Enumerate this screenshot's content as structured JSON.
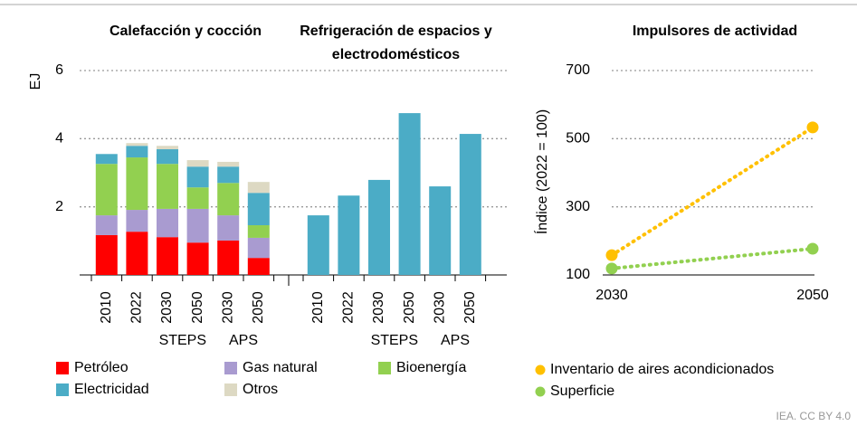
{
  "chart_data": [
    {
      "type": "bar",
      "stacked": true,
      "ylabel": "EJ",
      "ylim": [
        0,
        6
      ],
      "yticks": [
        2,
        4,
        6
      ],
      "grid": true,
      "categories": [
        "2010",
        "2022",
        "2030",
        "2050",
        "2030",
        "2050"
      ],
      "scenarios": [
        {
          "label": "STEPS",
          "from": 2,
          "to": 3
        },
        {
          "label": "APS",
          "from": 4,
          "to": 5
        }
      ],
      "series": [
        {
          "name": "Petróleo",
          "color": "#ff0000"
        },
        {
          "name": "Gas natural",
          "color": "#a99bd0"
        },
        {
          "name": "Bioenergía",
          "color": "#92d050"
        },
        {
          "name": "Electricidad",
          "color": "#4bacc6"
        },
        {
          "name": "Otros",
          "color": "#ddd9c3"
        }
      ],
      "panels": [
        {
          "title": "Calefacción y cocción",
          "values": [
            [
              1.17,
              1.27,
              1.11,
              0.95,
              1.01,
              0.5
            ],
            [
              0.58,
              0.64,
              0.83,
              0.99,
              0.74,
              0.59
            ],
            [
              1.51,
              1.54,
              1.32,
              0.63,
              0.95,
              0.37
            ],
            [
              0.29,
              0.34,
              0.43,
              0.61,
              0.48,
              0.95
            ],
            [
              0,
              0.08,
              0.1,
              0.19,
              0.14,
              0.32
            ]
          ]
        },
        {
          "title": "Refrigeración de espacios y electrodomésticos",
          "values": [
            null,
            null,
            null,
            [
              1.75,
              2.33,
              2.79,
              4.75,
              2.6,
              4.14
            ],
            null
          ]
        }
      ]
    },
    {
      "type": "line",
      "title": "Impulsores de actividad",
      "ylabel": "Índice (2022 = 100)",
      "x": [
        2030,
        2050
      ],
      "xlim": [
        2030,
        2050
      ],
      "xticks": [
        2030,
        2050
      ],
      "ylim": [
        100,
        700
      ],
      "yticks": [
        100,
        300,
        500,
        700
      ],
      "grid": true,
      "series": [
        {
          "name": "Inventario de aires acondicionados",
          "color": "#ffc000",
          "values": [
            158,
            533
          ]
        },
        {
          "name": "Superficie",
          "color": "#92d050",
          "values": [
            119,
            177
          ]
        }
      ]
    }
  ],
  "footer": "IEA. CC BY 4.0"
}
